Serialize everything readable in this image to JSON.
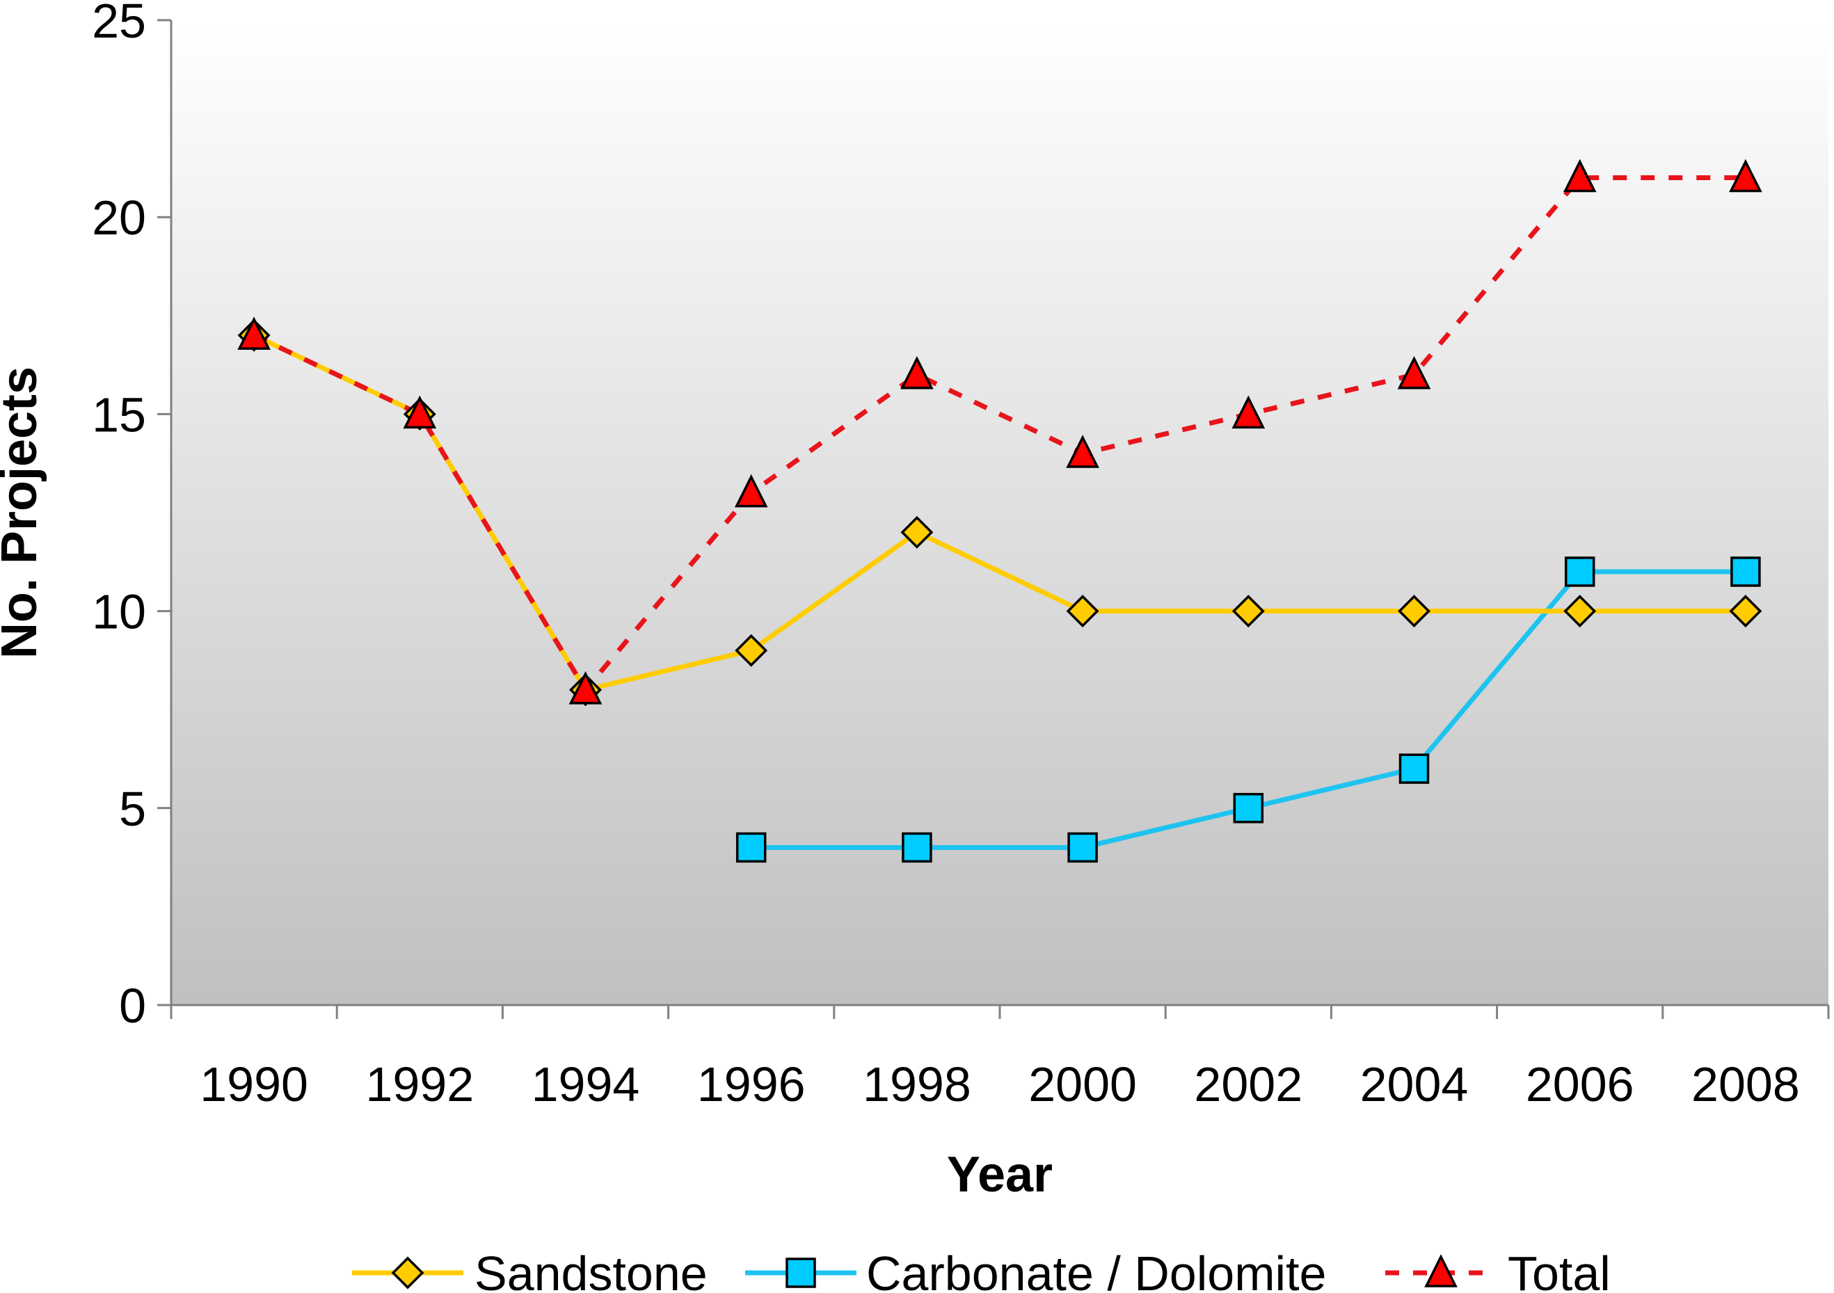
{
  "chart_data": {
    "type": "line",
    "title": "",
    "xlabel": "Year",
    "ylabel": "No. Projects",
    "ylim": [
      0,
      25
    ],
    "yticks": [
      0,
      5,
      10,
      15,
      20,
      25
    ],
    "ytick_labels": [
      "0",
      "5",
      "10",
      "15",
      "20",
      "25"
    ],
    "categories": [
      "1990",
      "1992",
      "1994",
      "1996",
      "1998",
      "2000",
      "2002",
      "2004",
      "2006",
      "2008"
    ],
    "legend_position": "bottom",
    "grid": false,
    "series": [
      {
        "name": "Sandstone",
        "color": "#FFCC00",
        "line_color": "#FFCC00",
        "marker": "diamond",
        "dash": "solid",
        "values": [
          17,
          15,
          8,
          9,
          12,
          10,
          10,
          10,
          10,
          10
        ]
      },
      {
        "name": "Carbonate / Dolomite",
        "color": "#00CCFF",
        "line_color": "#1EC3F0",
        "marker": "square",
        "dash": "solid",
        "values": [
          null,
          null,
          null,
          4,
          4,
          4,
          5,
          6,
          11,
          11
        ]
      },
      {
        "name": "Total",
        "color": "#FF0000",
        "line_color": "#E8141B",
        "marker": "triangle",
        "dash": "dashed",
        "values": [
          17,
          15,
          8,
          13,
          16,
          14,
          15,
          16,
          21,
          21
        ]
      }
    ]
  }
}
